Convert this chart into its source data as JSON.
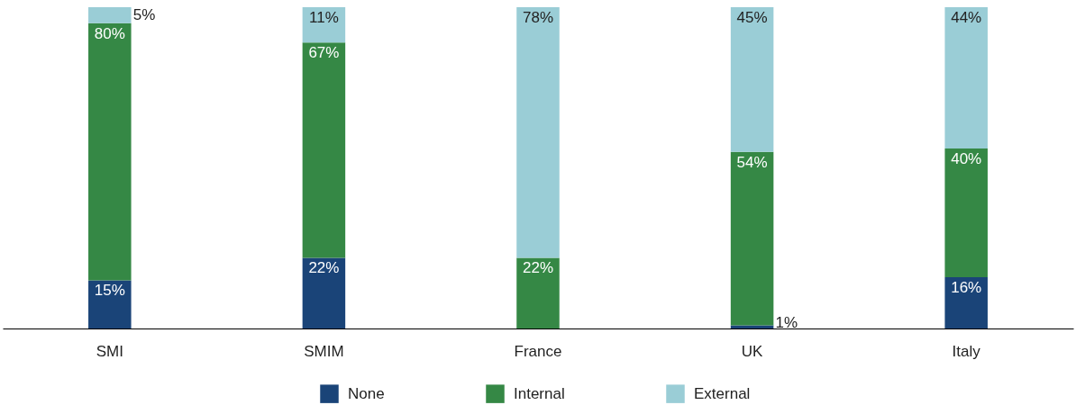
{
  "chart_data": {
    "type": "bar",
    "stacked": true,
    "legend": "bottom",
    "categories": [
      "SMI",
      "SMIM",
      "France",
      "UK",
      "Italy"
    ],
    "series": [
      {
        "name": "None",
        "color": "#1a4478",
        "values": [
          15,
          22,
          0,
          1,
          16
        ],
        "value_labels": [
          "15%",
          "22%",
          null,
          "1%",
          "16%"
        ]
      },
      {
        "name": "Internal",
        "color": "#358845",
        "values": [
          80,
          67,
          22,
          54,
          40
        ],
        "value_labels": [
          "80%",
          "67%",
          "22%",
          "54%",
          "40%"
        ]
      },
      {
        "name": "External",
        "color": "#9acdd6",
        "values": [
          5,
          11,
          78,
          45,
          44
        ],
        "value_labels": [
          "5%",
          "11%",
          "78%",
          "45%",
          "44%"
        ]
      }
    ]
  }
}
